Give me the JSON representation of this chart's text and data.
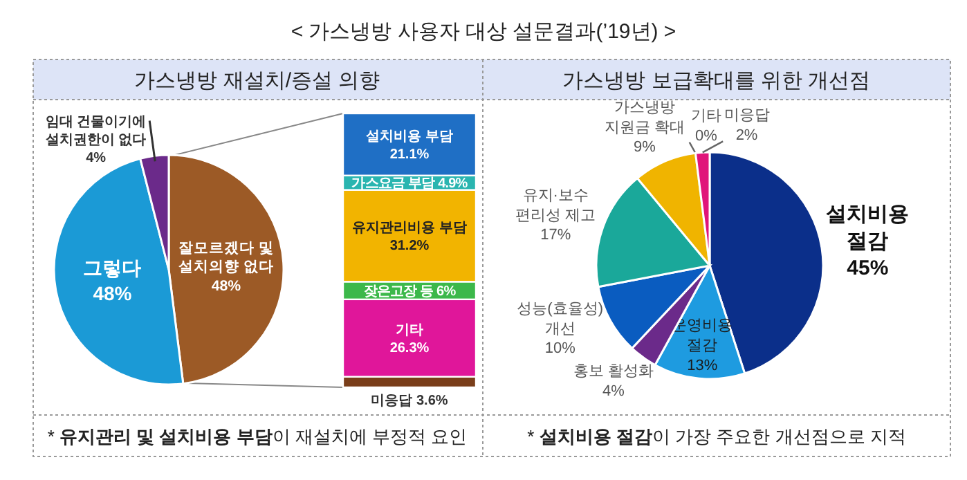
{
  "chart_data": [
    {
      "type": "pie",
      "title": "< 가스냉방 사용자 대상 설문결과(’19년) >",
      "subtitle": "가스냉방 재설치/증설 의향",
      "categories": [
        "잘모르겠다 및 설치의향 없다",
        "그렇다",
        "임대 건물이기에 설치권한이 없다"
      ],
      "values": [
        48,
        48,
        4
      ],
      "value_labels": [
        "48%",
        "48%",
        "4%"
      ],
      "colors": [
        "#9c5a26",
        "#1b9ad6",
        "#6b2a8a"
      ],
      "annotations": [
        "* **유지관리 및 설치비용 부담**이 재설치에 부정적 요인"
      ]
    },
    {
      "type": "bar",
      "stacked": true,
      "categories": [
        null
      ],
      "series": [
        {
          "name": "미응답",
          "color": "#7a3e1a",
          "values": [
            3.6
          ],
          "value_labels": [
            "3.6%"
          ]
        },
        {
          "name": "기타",
          "color": "#e0169a",
          "values": [
            26.3
          ],
          "value_labels": [
            "26.3%"
          ]
        },
        {
          "name": "잦은고장 등",
          "color": "#3cb84a",
          "values": [
            6
          ],
          "value_labels": [
            "6%"
          ]
        },
        {
          "name": "유지관리비용 부담",
          "color": "#f2b400",
          "values": [
            31.2
          ],
          "value_labels": [
            "31.2%"
          ]
        },
        {
          "name": "가스요금 부담",
          "color": "#2ab5b0",
          "values": [
            4.9
          ],
          "value_labels": [
            "4.9%"
          ]
        },
        {
          "name": "설치비용 부담",
          "color": "#1f6fc5",
          "values": [
            21.1
          ],
          "value_labels": [
            "21.1%"
          ]
        }
      ]
    },
    {
      "type": "pie",
      "title": "가스냉방 보급확대를 위한 개선점",
      "categories": [
        "설치비용 절감",
        "운영비용 절감",
        "홍보 활성화",
        "성능(효율성) 개선",
        "유지·보수 편리성 제고",
        "가스냉방 지원금 확대",
        "기타",
        "미응답"
      ],
      "values": [
        45,
        13,
        4,
        10,
        17,
        9,
        0,
        2
      ],
      "value_labels": [
        "45%",
        "13%",
        "4%",
        "10%",
        "17%",
        "9%",
        "0%",
        "2%"
      ],
      "colors": [
        "#0b2f8a",
        "#1e9be0",
        "#6b2a8a",
        "#0a5cc0",
        "#1aa89a",
        "#f0b400",
        "#9acd32",
        "#e0157a"
      ],
      "annotations": [
        "* **설치비용 절감**이 가장 주요한 개선점으로 지적"
      ]
    }
  ]
}
